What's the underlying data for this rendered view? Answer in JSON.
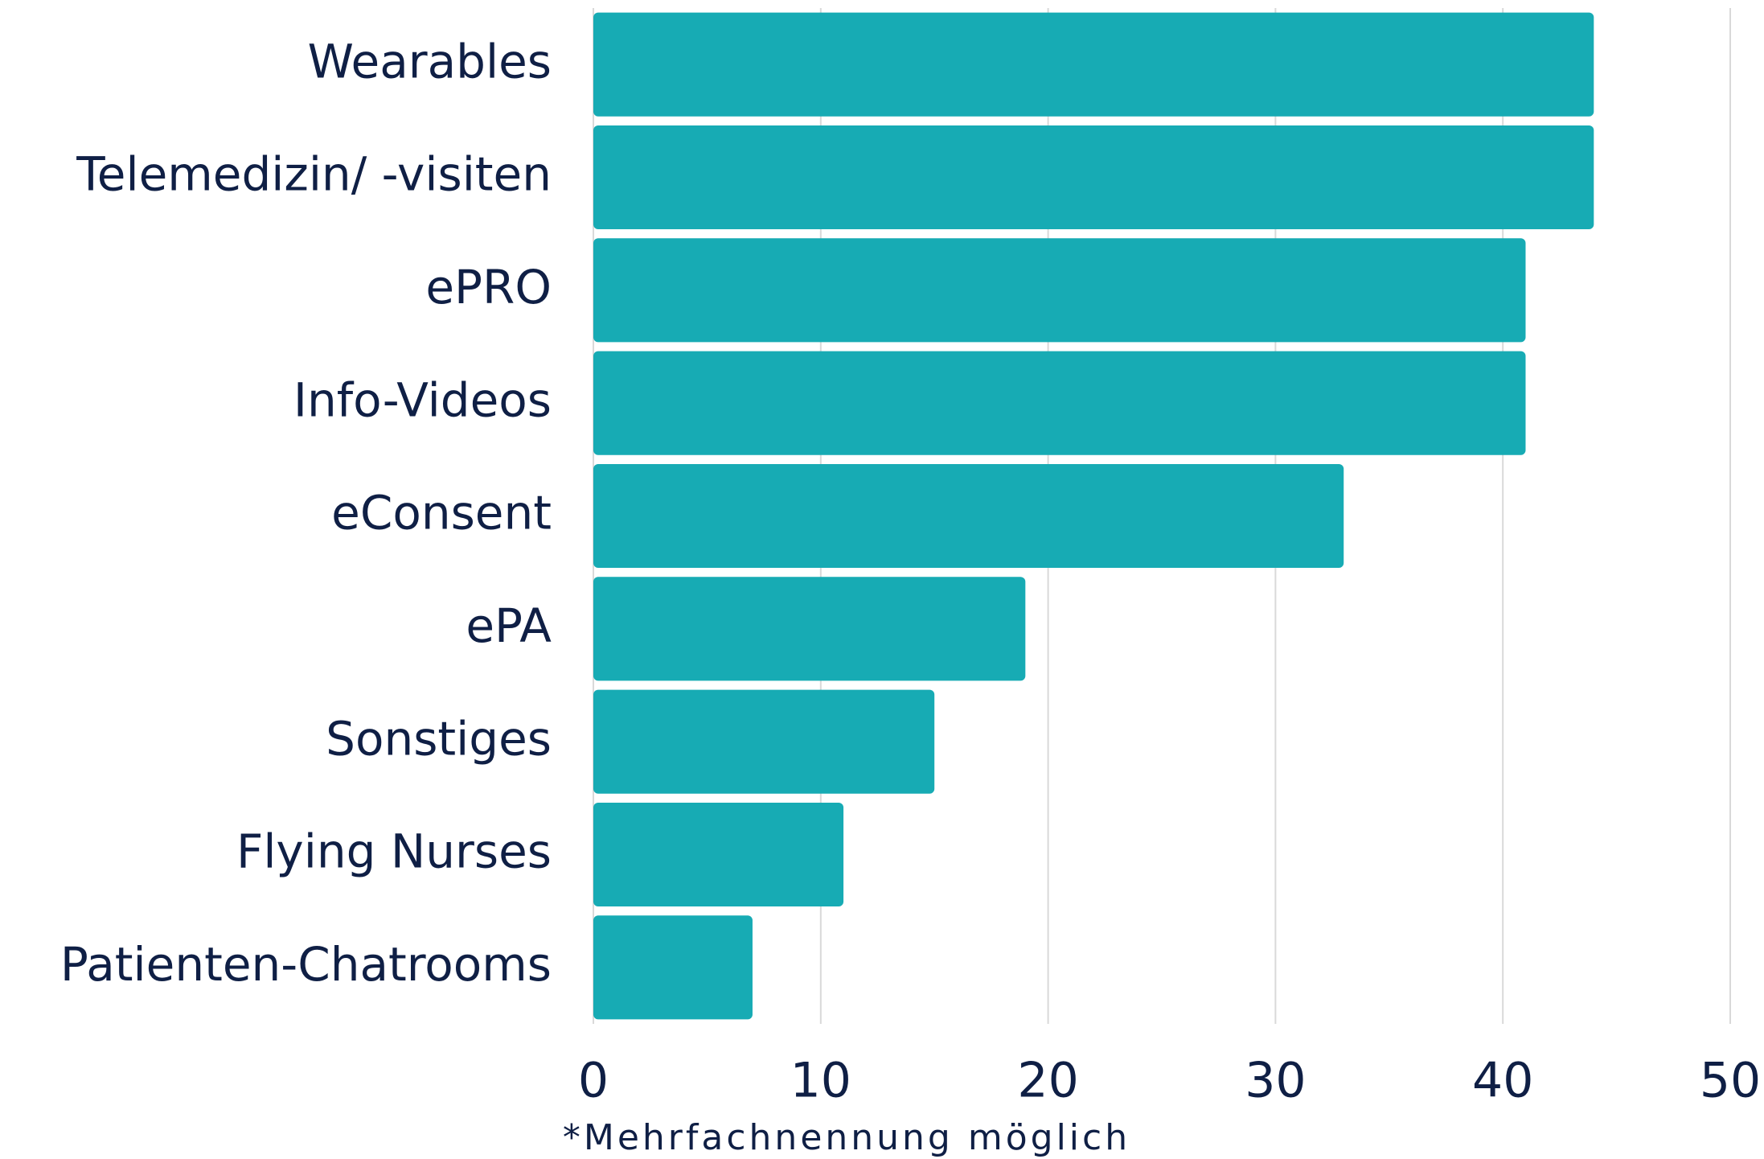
{
  "chart_data": {
    "type": "hbar",
    "categories": [
      "Wearables",
      "Telemedizin/ -visiten",
      "ePRO",
      "Info-Videos",
      "eConsent",
      "ePA",
      "Sonstiges",
      "Flying Nurses",
      "Patienten-Chatrooms"
    ],
    "values": [
      44,
      44,
      41,
      41,
      33,
      19,
      15,
      11,
      7
    ],
    "color": "#17abb4",
    "xlim": [
      0,
      50
    ],
    "xticks": [
      0,
      10,
      20,
      30,
      40,
      50
    ],
    "grid": true,
    "annotation": "*Mehrfachnennung möglich"
  }
}
